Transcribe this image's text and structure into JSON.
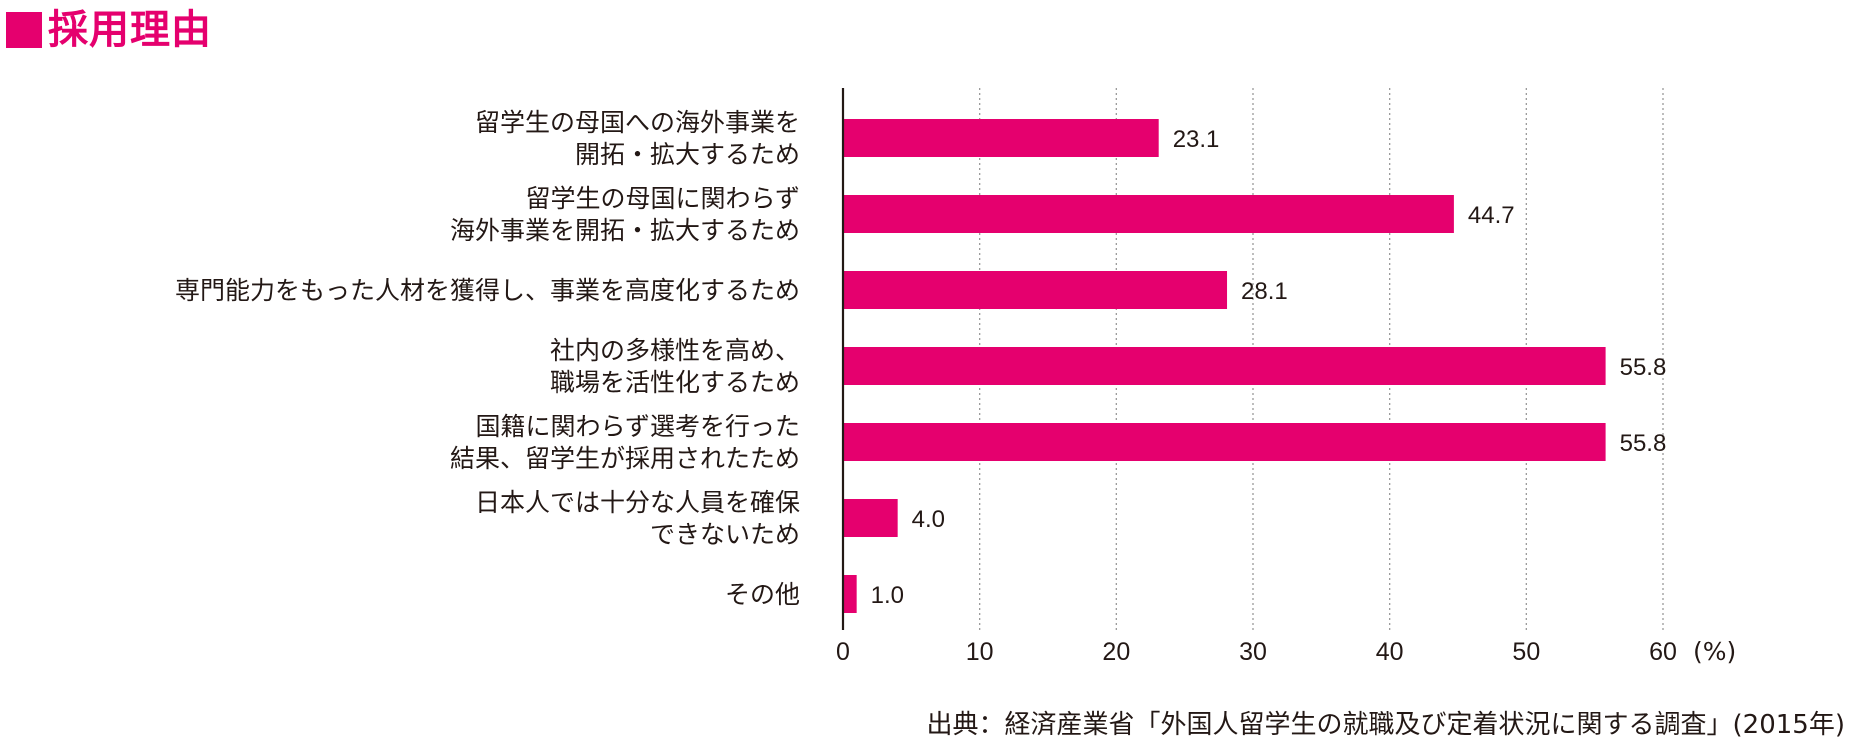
{
  "title": "採用理由",
  "chart_data": {
    "type": "bar",
    "orientation": "horizontal",
    "categories": [
      [
        "留学生の母国への海外事業を",
        "開拓・拡大するため"
      ],
      [
        "留学生の母国に関わらず",
        "海外事業を開拓・拡大するため"
      ],
      [
        "専門能力をもった人材を獲得し、事業を高度化するため"
      ],
      [
        "社内の多様性を高め、",
        "職場を活性化するため"
      ],
      [
        "国籍に関わらず選考を行った",
        "結果、留学生が採用されたため"
      ],
      [
        "日本人では十分な人員を確保",
        "できないため"
      ],
      [
        "その他"
      ]
    ],
    "values": [
      23.1,
      44.7,
      28.1,
      55.8,
      55.8,
      4.0,
      1.0
    ],
    "value_labels": [
      "23.1",
      "44.7",
      "28.1",
      "55.8",
      "55.8",
      "4.0",
      "1.0"
    ],
    "xlim": [
      0,
      60
    ],
    "xticks": [
      0,
      10,
      20,
      30,
      40,
      50,
      60
    ],
    "unit_label": "(%)",
    "grid": "vertical dotted",
    "bar_color": "#e5006e"
  },
  "source": "出典：経済産業省「外国人留学生の就職及び定着状況に関する調査」(2015年)"
}
